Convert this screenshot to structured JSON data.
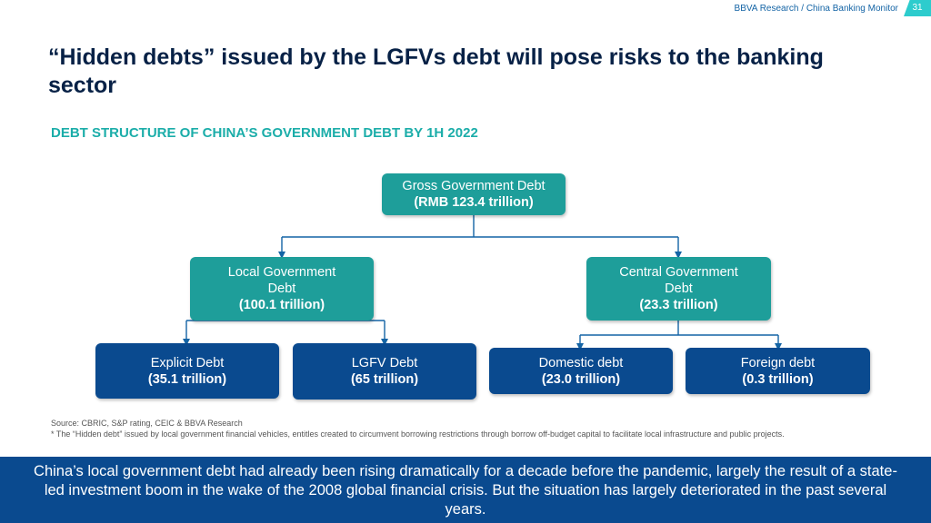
{
  "header": {
    "brand": "BBVA Research / China Banking Monitor",
    "page_number": "31"
  },
  "title": "“Hidden debts” issued by the LGFVs debt will pose risks to the banking sector",
  "subtitle": "DEBT STRUCTURE OF CHINA’S GOVERNMENT DEBT BY 1H 2022",
  "diagram": {
    "root": {
      "name": "Gross Government Debt",
      "value": "(RMB 123.4 trillion)"
    },
    "local": {
      "name": "Local Government Debt",
      "value": "(100.1 trillion)",
      "children": [
        {
          "name": "Explicit Debt",
          "value": "(35.1 trillion)"
        },
        {
          "name": "LGFV Debt",
          "value": "(65 trillion)"
        }
      ]
    },
    "central": {
      "name": "Central Government Debt",
      "value": "(23.3 trillion)",
      "children": [
        {
          "name": "Domestic debt",
          "value": "(23.0 trillion)"
        },
        {
          "name": "Foreign debt",
          "value": "(0.3 trillion)"
        }
      ]
    }
  },
  "footnotes": {
    "source": "Source: CBRIC, S&P rating, CEIC & BBVA Research",
    "note": "* The “Hidden debt” issued by local government financial vehicles, entitles created to circumvent borrowing restrictions through borrow off-budget capital to facilitate local infrastructure and public projects."
  },
  "banner": "China’s local government debt had already been rising dramatically for a decade before the pandemic, largely the result of a state-led investment boom in the wake of the 2008 global financial crisis. But the situation has largely deteriorated in the past several years.",
  "colors": {
    "teal_node": "#1e9e9a",
    "navy_node": "#0a4a8f",
    "connector": "#1464a5",
    "title": "#072146",
    "subtitle": "#1bada9"
  }
}
